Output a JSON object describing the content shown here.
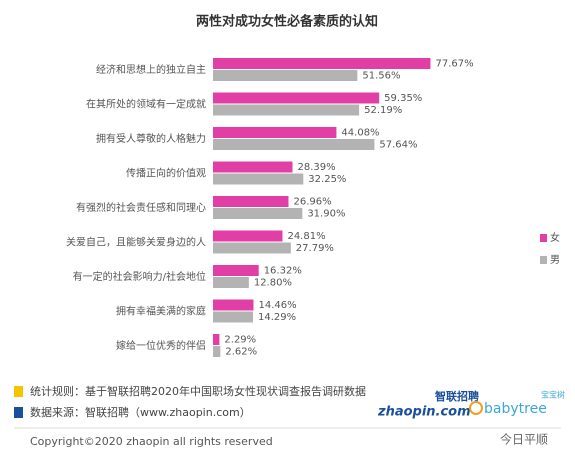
{
  "chart_data": {
    "type": "bar",
    "orientation": "horizontal",
    "title": "两性对成功女性必备素质的认知",
    "categories": [
      "经济和思想上的独立自主",
      "在其所处的领域有一定成就",
      "拥有受人尊敬的人格魅力",
      "传播正向的价值观",
      "有强烈的社会责任感和同理心",
      "关爱自己，且能够关爱身边的人",
      "有一定的社会影响力/社会地位",
      "拥有幸福美满的家庭",
      "嫁给一位优秀的伴侣"
    ],
    "series": [
      {
        "name": "女",
        "color": "#e23fa6",
        "values": [
          77.67,
          59.35,
          44.08,
          28.39,
          26.96,
          24.81,
          16.32,
          14.46,
          2.29
        ],
        "value_labels": [
          "77.67%",
          "59.35%",
          "44.08%",
          "28.39%",
          "26.96%",
          "24.81%",
          "16.32%",
          "14.46%",
          "2.29%"
        ]
      },
      {
        "name": "男",
        "color": "#b3b3b3",
        "values": [
          51.56,
          52.19,
          57.64,
          32.25,
          31.9,
          27.79,
          12.8,
          14.29,
          2.62
        ],
        "value_labels": [
          "51.56%",
          "52.19%",
          "57.64%",
          "32.25%",
          "31.90%",
          "27.79%",
          "12.80%",
          "14.29%",
          "2.62%"
        ]
      }
    ],
    "legend": "right"
  },
  "footer": {
    "rule": "统计规则：基于智联招聘2020年中国职场女性现状调查报告调研数据",
    "source": "数据来源：智联招聘（www.zhaopin.com）",
    "copyright": "Copyright©2020 zhaopin all rights reserved",
    "logo_zhaopin": "智联招聘",
    "logo_zhaopin_domain": "zhaopin.com",
    "logo_babytree": "babytree",
    "logo_babytree_cn": "宝宝树",
    "watermark": "今日平顺"
  }
}
